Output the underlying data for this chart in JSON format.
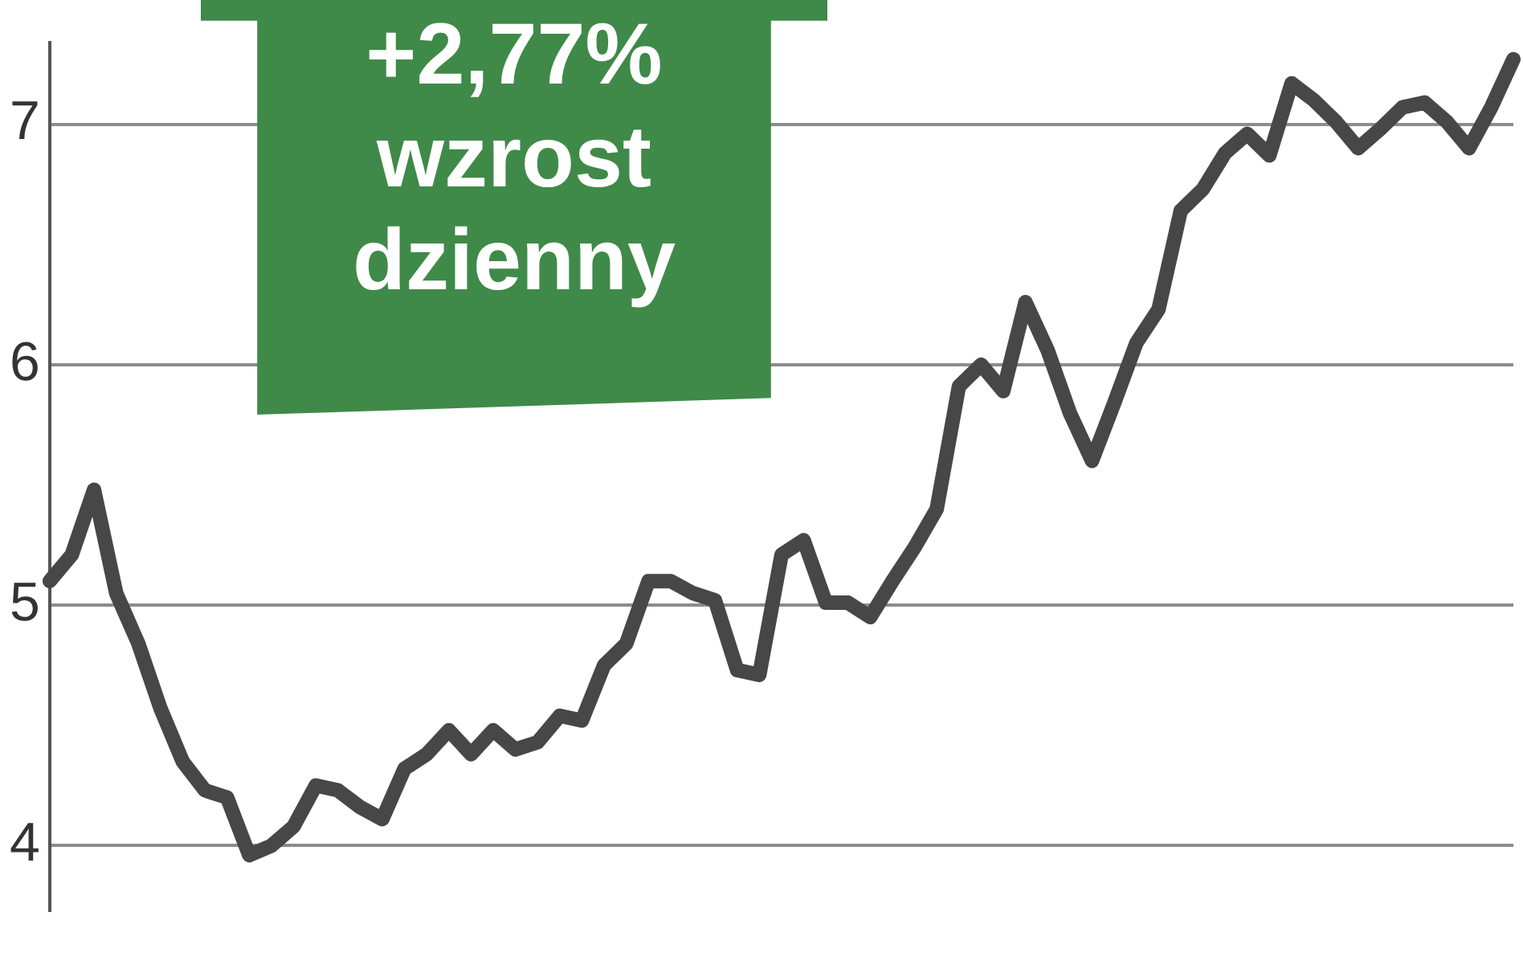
{
  "chart_data": {
    "type": "line",
    "categories": [
      null,
      null,
      null,
      null,
      null,
      null,
      null,
      null,
      null,
      null,
      null,
      null,
      null,
      null,
      null,
      null,
      null,
      null,
      null,
      null,
      null,
      null,
      null,
      null,
      null,
      null,
      null,
      null,
      null,
      null,
      null,
      null,
      null,
      null,
      null,
      null,
      null,
      null,
      null,
      null,
      null,
      null,
      null,
      null,
      null,
      null,
      null,
      null,
      null,
      null,
      null,
      null,
      null,
      null,
      null,
      null,
      null,
      null,
      null,
      null,
      null,
      null,
      null,
      null,
      null,
      null,
      null
    ],
    "series": [
      {
        "color": "#474747",
        "values": [
          5.1,
          5.21,
          5.48,
          5.05,
          4.84,
          4.57,
          4.35,
          4.23,
          4.2,
          3.96,
          4.0,
          4.08,
          4.25,
          4.23,
          4.16,
          4.11,
          4.32,
          4.38,
          4.48,
          4.38,
          4.48,
          4.4,
          4.43,
          4.54,
          4.52,
          4.75,
          4.84,
          5.1,
          5.1,
          5.05,
          5.02,
          4.73,
          4.71,
          5.21,
          5.27,
          5.01,
          5.01,
          4.95,
          5.1,
          5.24,
          5.4,
          5.91,
          6.0,
          5.89,
          6.26,
          6.06,
          5.8,
          5.6,
          5.84,
          6.09,
          6.23,
          6.64,
          6.73,
          6.88,
          6.96,
          6.87,
          7.17,
          7.1,
          7.01,
          6.9,
          6.98,
          7.07,
          7.09,
          7.01,
          6.9,
          7.07,
          7.27
        ]
      }
    ],
    "ylim": [
      3.73,
      7.34
    ],
    "yticks": [
      4,
      5,
      6,
      7
    ],
    "grid": "y",
    "tick_labels": "y",
    "marker": "none",
    "line_style": "solid",
    "legend": false,
    "annotations": [
      "+2,77%",
      "wzrost",
      "dzienny"
    ]
  }
}
